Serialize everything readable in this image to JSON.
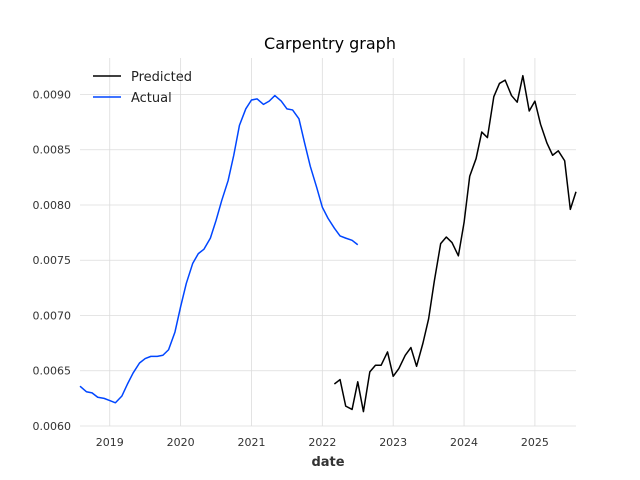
{
  "chart_data": {
    "type": "line",
    "title": "Carpentry graph",
    "xlabel": "date",
    "ylabel": "",
    "xlim": [
      2018.58,
      2025.58
    ],
    "ylim": [
      0.006,
      0.00933
    ],
    "grid": true,
    "legend_position": "top-left",
    "x_ticks": [
      {
        "value": 2019,
        "label": "2019"
      },
      {
        "value": 2020,
        "label": "2020"
      },
      {
        "value": 2021,
        "label": "2021"
      },
      {
        "value": 2022,
        "label": "2022"
      },
      {
        "value": 2023,
        "label": "2023"
      },
      {
        "value": 2024,
        "label": "2024"
      },
      {
        "value": 2025,
        "label": "2025"
      }
    ],
    "y_ticks": [
      {
        "value": 0.006,
        "label": "0.0060"
      },
      {
        "value": 0.0065,
        "label": "0.0065"
      },
      {
        "value": 0.007,
        "label": "0.0070"
      },
      {
        "value": 0.0075,
        "label": "0.0075"
      },
      {
        "value": 0.008,
        "label": "0.0080"
      },
      {
        "value": 0.0085,
        "label": "0.0085"
      },
      {
        "value": 0.009,
        "label": "0.0090"
      }
    ],
    "series": [
      {
        "name": "Predicted",
        "color": "#000000",
        "x": [
          2022.17,
          2022.25,
          2022.33,
          2022.42,
          2022.5,
          2022.58,
          2022.67,
          2022.75,
          2022.83,
          2022.92,
          2023.0,
          2023.08,
          2023.17,
          2023.25,
          2023.33,
          2023.42,
          2023.5,
          2023.58,
          2023.67,
          2023.75,
          2023.83,
          2023.92,
          2024.0,
          2024.08,
          2024.17,
          2024.25,
          2024.33,
          2024.42,
          2024.5,
          2024.58,
          2024.67,
          2024.75,
          2024.83,
          2024.92,
          2025.0,
          2025.08,
          2025.17,
          2025.25,
          2025.33,
          2025.42,
          2025.5,
          2025.58
        ],
        "values": [
          0.00638,
          0.00642,
          0.00618,
          0.00615,
          0.0064,
          0.00613,
          0.00649,
          0.00655,
          0.00655,
          0.00667,
          0.00645,
          0.00652,
          0.00664,
          0.00671,
          0.00654,
          0.00675,
          0.00697,
          0.00731,
          0.00765,
          0.00771,
          0.00766,
          0.00754,
          0.00784,
          0.00826,
          0.00842,
          0.00866,
          0.00861,
          0.00898,
          0.0091,
          0.00913,
          0.00899,
          0.00893,
          0.00917,
          0.00885,
          0.00894,
          0.00873,
          0.00856,
          0.00845,
          0.00849,
          0.0084,
          0.00796,
          0.00812
        ]
      },
      {
        "name": "Actual",
        "color": "#0046ff",
        "x": [
          2018.58,
          2018.67,
          2018.75,
          2018.83,
          2018.92,
          2019.0,
          2019.08,
          2019.17,
          2019.25,
          2019.33,
          2019.42,
          2019.5,
          2019.58,
          2019.67,
          2019.75,
          2019.83,
          2019.92,
          2020.0,
          2020.08,
          2020.17,
          2020.25,
          2020.33,
          2020.42,
          2020.5,
          2020.58,
          2020.67,
          2020.75,
          2020.83,
          2020.92,
          2021.0,
          2021.08,
          2021.17,
          2021.25,
          2021.33,
          2021.42,
          2021.5,
          2021.58,
          2021.67,
          2021.75,
          2021.83,
          2021.92,
          2022.0,
          2022.08,
          2022.17,
          2022.25,
          2022.33,
          2022.42,
          2022.5
        ],
        "values": [
          0.00636,
          0.00631,
          0.0063,
          0.00626,
          0.00625,
          0.00623,
          0.00621,
          0.00627,
          0.00638,
          0.00648,
          0.00657,
          0.00661,
          0.00663,
          0.00663,
          0.00664,
          0.00669,
          0.00685,
          0.00708,
          0.00729,
          0.00747,
          0.00756,
          0.0076,
          0.0077,
          0.00786,
          0.00804,
          0.00822,
          0.00845,
          0.00872,
          0.00887,
          0.00895,
          0.00896,
          0.00891,
          0.00894,
          0.00899,
          0.00894,
          0.00887,
          0.00886,
          0.00878,
          0.00856,
          0.00835,
          0.00816,
          0.00798,
          0.00788,
          0.00779,
          0.00772,
          0.0077,
          0.00768,
          0.00764
        ]
      }
    ]
  }
}
